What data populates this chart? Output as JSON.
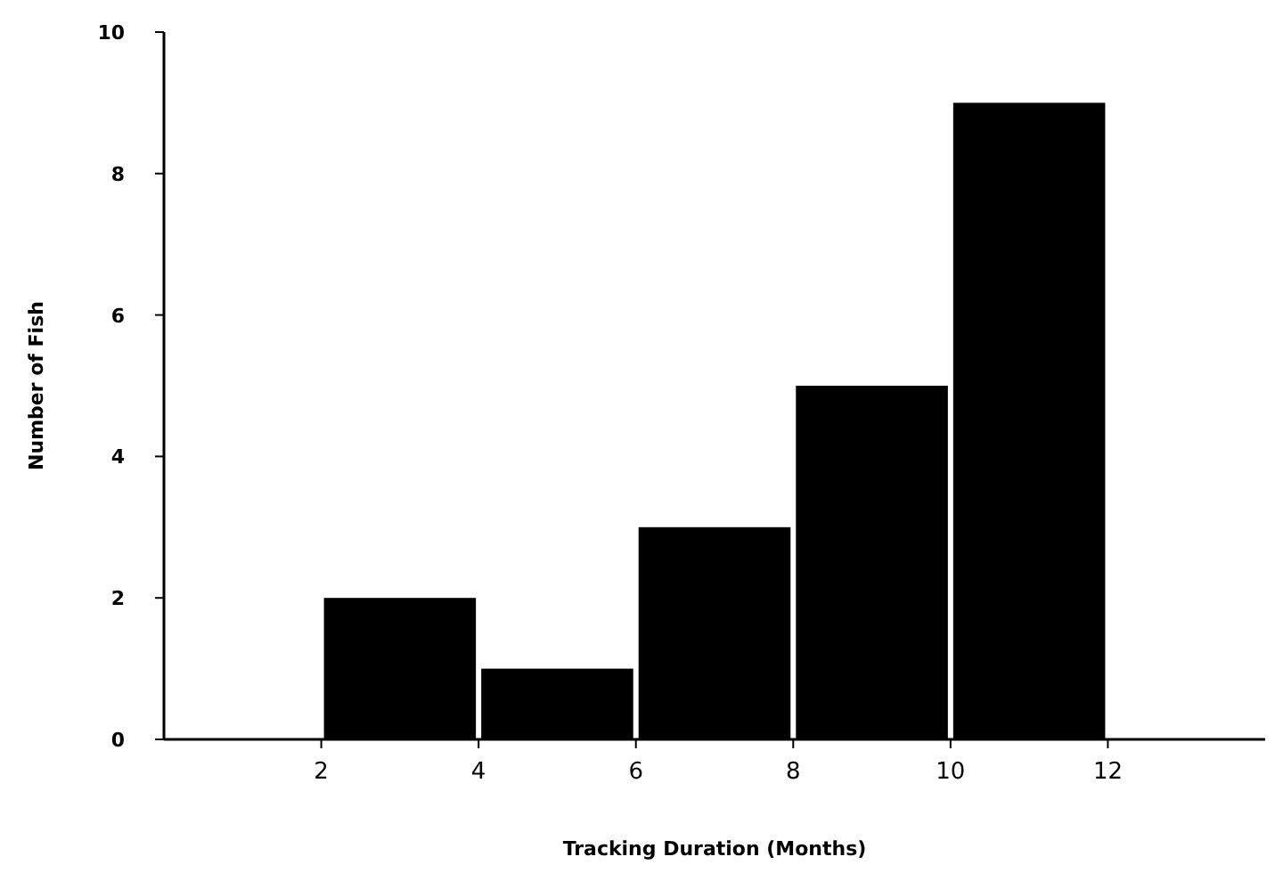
{
  "chart_data": {
    "type": "histogram",
    "xlabel": "Tracking Duration (Months)",
    "ylabel": "Number of Fish",
    "bins": [
      2,
      4,
      6,
      8,
      10,
      12
    ],
    "values": [
      2,
      1,
      3,
      5,
      9
    ],
    "color": "#000000",
    "xlim": [
      0,
      14
    ],
    "xticks": [
      2,
      4,
      6,
      8,
      10,
      12
    ],
    "ylim": [
      0,
      10
    ],
    "yticks": [
      0,
      2,
      4,
      6,
      8,
      10
    ]
  }
}
